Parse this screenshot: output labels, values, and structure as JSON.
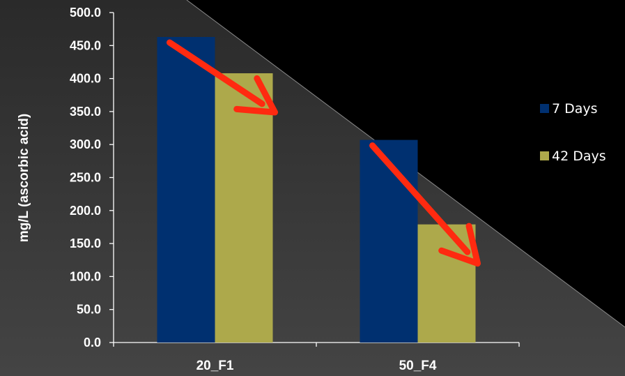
{
  "chart_data": {
    "type": "bar",
    "categories": [
      "20_F1",
      "50_F4"
    ],
    "series": [
      {
        "name": "7 Days",
        "values": [
          463,
          307
        ],
        "color": "#003070"
      },
      {
        "name": "42 Days",
        "values": [
          408,
          179
        ],
        "color": "#ADA94B"
      }
    ],
    "title": "",
    "xlabel": "",
    "ylabel": "mg/L (ascorbic acid)",
    "ylim": [
      0,
      500
    ],
    "y_ticks": [
      "0.0",
      "50.0",
      "100.0",
      "150.0",
      "200.0",
      "250.0",
      "300.0",
      "350.0",
      "400.0",
      "450.0",
      "500.0"
    ],
    "grid": false,
    "legend_position": "right",
    "annotations": [
      {
        "type": "arrow",
        "from_series": "7 Days",
        "to_series": "42 Days",
        "category": "20_F1",
        "color": "#FF2A10"
      },
      {
        "type": "arrow",
        "from_series": "7 Days",
        "to_series": "42 Days",
        "category": "50_F4",
        "color": "#FF2A10"
      }
    ]
  },
  "background": {
    "colors": [
      "#000000",
      "#3A3A3A"
    ]
  }
}
